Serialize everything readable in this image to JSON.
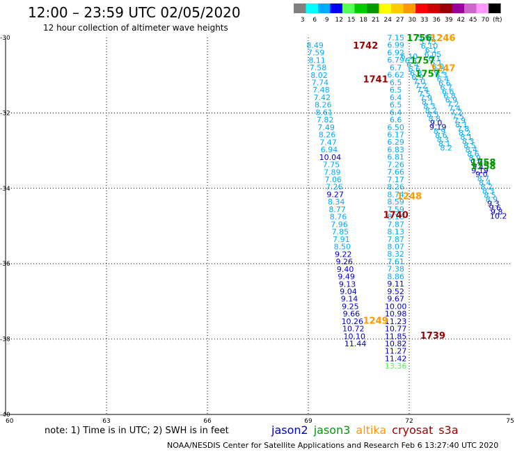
{
  "title": "12:00 – 23:59 UTC 02/05/2020",
  "subtitle": "12 hour collection of altimeter wave heights",
  "colorbar": {
    "colors": [
      "#808080",
      "#00ffff",
      "#00aaff",
      "#0000ff",
      "#55ff55",
      "#00cc00",
      "#009900",
      "#ffff00",
      "#ffcc00",
      "#ff9900",
      "#ff0000",
      "#cc0000",
      "#990000",
      "#990099",
      "#cc66cc",
      "#ff99ff",
      "#000000"
    ],
    "labels": [
      "3",
      "6",
      "9",
      "12",
      "15",
      "18",
      "21",
      "24",
      "27",
      "30",
      "33",
      "36",
      "39",
      "42",
      "45",
      "70",
      "(ft)"
    ]
  },
  "axes": {
    "lon_range": [
      60,
      75
    ],
    "lat_range": [
      -40,
      -30
    ],
    "lon_ticks": [
      "60",
      "63",
      "66",
      "69",
      "72",
      "75"
    ],
    "lat_ticks": [
      "-30",
      "-32",
      "-34",
      "-36",
      "-38",
      "-40"
    ]
  },
  "colors": {
    "jason2": "#0000cc",
    "jason3": "#009900",
    "altika": "#ff9900",
    "cryosat": "#990000",
    "s3a": "#990000",
    "swh_light": "#00aaff",
    "swh_dark": "#0000cc"
  },
  "tracks": [
    {
      "name": "track-1742",
      "time": "1742",
      "time_lon": 70.7,
      "time_lat": -30.2,
      "time_color": "#990000",
      "start_lon": 69.2,
      "start_lat": -30.2,
      "step_lon": 0.03,
      "step_lat": 0.198,
      "values": [
        "8.49",
        "7.59",
        "8.11",
        "7.58",
        "8.02",
        "7.74",
        "7.48",
        "7.42",
        "8.26",
        "8.61",
        "7.82",
        "7.49",
        "8.26",
        "7.47",
        "6.94",
        "10.04",
        "7.75",
        "7.89",
        "7.06",
        "7.26",
        "9.27",
        "8.34",
        "8.77",
        "8.76",
        "7.96",
        "7.85",
        "7.91",
        "8.50",
        "9.22",
        "9.26",
        "9.40",
        "9.49",
        "9.13",
        "9.04",
        "9.14",
        "9.25",
        "9.66",
        "10.26",
        "10.72",
        "10.10",
        "11.44"
      ]
    },
    {
      "name": "track-1741",
      "time": "1741",
      "time_lon": 71.0,
      "time_lat": -31.1,
      "time_color": "#990000",
      "start_lon": 71.6,
      "start_lat": -30.0,
      "step_lon": 0.0,
      "step_lat": 0.198,
      "values": [
        "7.15",
        "6.99",
        "6.92",
        "6.79",
        "6.7",
        "6.62",
        "6.5",
        "6.5",
        "6.4",
        "6.5",
        "6.4",
        "6.6",
        "6.50",
        "6.17",
        "6.29",
        "6.83",
        "6.81",
        "7.26",
        "7.66",
        "7.17",
        "8.26",
        "8.74",
        "8.59",
        "7.59",
        "8.16",
        "7.87",
        "8.13",
        "7.87",
        "8.07",
        "8.32",
        "7.61",
        "7.38",
        "8.86",
        "9.11",
        "9.52",
        "9.67",
        "10.00",
        "10.98",
        "11.23",
        "10.77",
        "11.85",
        "10.82",
        "11.27",
        "11.42",
        "13.36"
      ]
    },
    {
      "name": "track-1756",
      "time": "1756",
      "time_lon": 72.3,
      "time_lat": -30.0,
      "time_color": "#009900",
      "start_lon": 72.5,
      "start_lat": -30.0,
      "step_lon": 0.05,
      "step_lat": 0.11,
      "values": [
        "5.98",
        "5.75",
        "6.10",
        "6.1",
        "6.05",
        "6.1",
        "6.1",
        "6.0",
        "6.2",
        "6.3",
        "6.4",
        "6.6",
        "6.7",
        "6.6",
        "6.8",
        "6.9",
        "7.2",
        "7.4",
        "7.2",
        "7.5",
        "7.9",
        "8.1",
        "7.8",
        "8.2",
        "8.1",
        "8.3",
        "8.5",
        "8.4",
        "8.6",
        "8.9",
        "9.0",
        "9.1",
        "9.19",
        "9.0",
        "8.7",
        "8.4",
        "8.2",
        "8.3",
        "8.5",
        "8.9",
        "9.3",
        "9.6",
        "9.8",
        "10.2"
      ]
    },
    {
      "name": "track-1757",
      "time": "1757",
      "time_lon": 72.4,
      "time_lat": -30.6,
      "time_color": "#009900",
      "start_lon": 72.0,
      "start_lat": -30.5,
      "step_lon": 0.05,
      "step_lat": 0.11,
      "values": [
        "6.10",
        "6.3",
        "6.4",
        "6.6",
        "6.8",
        "6.9",
        "7.0",
        "7.2",
        "7.4",
        "7.5",
        "7.9",
        "8.1",
        "8.3",
        "8.2",
        "8.5",
        "8.8",
        "9.0",
        "9.19",
        "8.9",
        "8.6",
        "8.3",
        "8.1",
        "8.2"
      ]
    }
  ],
  "time_labels": [
    {
      "text": "1246",
      "lon": 73.0,
      "lat": -30.0,
      "color": "#ff9900"
    },
    {
      "text": "1247",
      "lon": 73.0,
      "lat": -30.8,
      "color": "#ff9900"
    },
    {
      "text": "1757",
      "lon": 72.55,
      "lat": -30.95,
      "color": "#009900"
    },
    {
      "text": "1758",
      "lon": 74.2,
      "lat": -33.3,
      "color": "#009900"
    },
    {
      "text": "1758",
      "lon": 74.2,
      "lat": -33.4,
      "color": "#009900"
    },
    {
      "text": "1248",
      "lon": 72.0,
      "lat": -34.2,
      "color": "#ff9900"
    },
    {
      "text": "1740",
      "lon": 71.6,
      "lat": -34.7,
      "color": "#990000"
    },
    {
      "text": "1249",
      "lon": 71.0,
      "lat": -37.5,
      "color": "#ff9900"
    },
    {
      "text": "1739",
      "lon": 72.7,
      "lat": -37.9,
      "color": "#990000"
    }
  ],
  "note": "note:  1) Time is in UTC; 2) SWH is in feet",
  "legend": [
    {
      "text": "jason2",
      "color": "#0000cc"
    },
    {
      "text": "jason3",
      "color": "#009900"
    },
    {
      "text": "altika",
      "color": "#ff9900"
    },
    {
      "text": "cryosat",
      "color": "#990000"
    },
    {
      "text": "s3a",
      "color": "#990000"
    }
  ],
  "footer": "NOAA/NESDIS Center for Satellite Applications and Research    Feb  6 13:27:40 UTC 2020"
}
